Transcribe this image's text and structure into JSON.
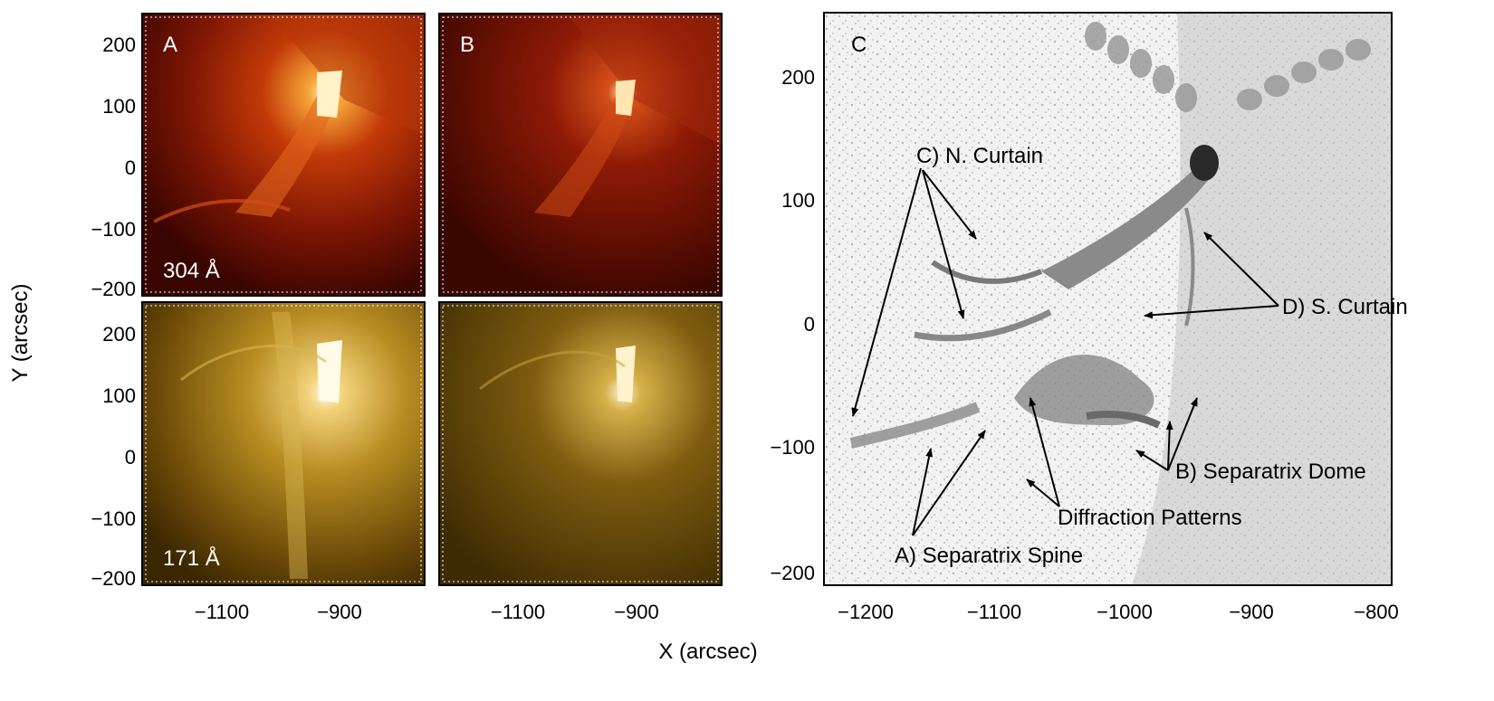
{
  "figure": {
    "x_label": "X (arcsec)",
    "y_label": "Y (arcsec)",
    "left_y_ticks": [
      "200",
      "100",
      "0",
      "−100",
      "−200"
    ],
    "left_x_ticks": [
      "−1100",
      "−900"
    ],
    "right_y_ticks": [
      "200",
      "100",
      "0",
      "−100",
      "−200"
    ],
    "right_x_ticks": [
      "−1200",
      "−1100",
      "−1000",
      "−900",
      "−800"
    ]
  },
  "panels": {
    "a_label": "A",
    "b_label": "B",
    "c_label": "C",
    "wavelength_top": "304 Å",
    "wavelength_bottom": "171 Å"
  },
  "annotations": {
    "n_curtain": "C) N. Curtain",
    "s_curtain": "D) S. Curtain",
    "separatrix_dome": "B) Separatrix Dome",
    "diffraction": "Diffraction Patterns",
    "separatrix_spine": "A) Separatrix Spine"
  },
  "colors": {
    "euv_304": "#c23a08",
    "euv_171": "#c9a032",
    "grayscale": "#888888"
  }
}
